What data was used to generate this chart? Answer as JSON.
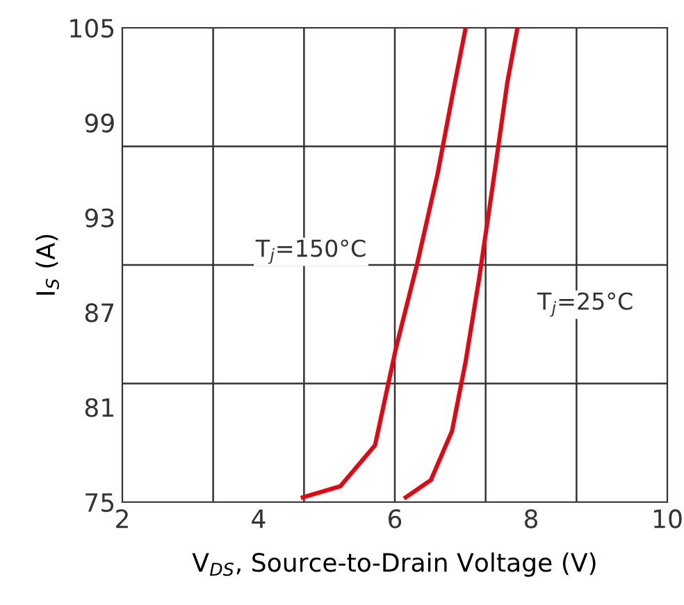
{
  "chart_data": {
    "type": "line",
    "xlabel": "V$_{DS}$, Source-to-Drain Voltage (V)",
    "ylabel": "I$_{S}$ (A)",
    "xlim": [
      2,
      10
    ],
    "ylim": [
      75,
      105
    ],
    "xticks": [
      2,
      4,
      6,
      8,
      10,
      {
        "value": 3.333,
        "label": null
      },
      {
        "value": 4.667,
        "label": null
      },
      {
        "value": 6.0,
        "label": null
      },
      {
        "value": 7.333,
        "label": null
      },
      {
        "value": 8.667,
        "label": null
      }
    ],
    "yticks": [
      75,
      81,
      87,
      93,
      99,
      105,
      {
        "value": 82.5,
        "label": null
      },
      {
        "value": 90,
        "label": null
      },
      {
        "value": 97.5,
        "label": null
      }
    ],
    "grid": true,
    "marker": "none",
    "line_style": "solid",
    "series": [
      {
        "name": "T$_{j}$=150°C",
        "color": "#e30613",
        "x": [
          4.65,
          5.2,
          5.71,
          6.02,
          6.33,
          6.63,
          6.84,
          7.04
        ],
        "values": [
          75.3,
          76.0,
          78.6,
          84.8,
          90.1,
          95.8,
          100.6,
          105
        ]
      },
      {
        "name": "T$_{j}$=25°C",
        "color": "#e30613",
        "x": [
          6.16,
          6.53,
          6.84,
          7.04,
          7.24,
          7.45,
          7.65,
          7.8
        ],
        "values": [
          75.3,
          76.4,
          79.5,
          83.9,
          89.2,
          95.4,
          101.5,
          105
        ]
      }
    ],
    "legend": false
  }
}
